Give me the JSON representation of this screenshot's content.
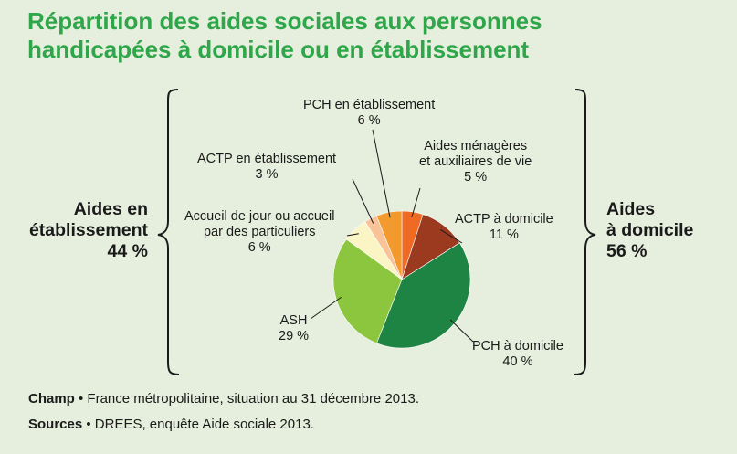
{
  "title_lines": [
    "Répartition des aides sociales aux personnes",
    "handicapées à domicile ou en établissement"
  ],
  "groups": {
    "left": {
      "lines": [
        "Aides en",
        "établissement",
        "44 %"
      ]
    },
    "right": {
      "lines": [
        "Aides",
        "à domicile",
        "56 %"
      ]
    }
  },
  "chart_data": {
    "type": "pie",
    "title": "Répartition des aides sociales aux personnes handicapées à domicile ou en établissement",
    "slices": [
      {
        "label_lines": [
          "Aides ménagères",
          "et auxiliaires de vie"
        ],
        "value": 5,
        "value_text": "5 %",
        "color": "#ef6a22"
      },
      {
        "label_lines": [
          "ACTP à domicile"
        ],
        "value": 11,
        "value_text": "11 %",
        "color": "#9b3a1f"
      },
      {
        "label_lines": [
          "PCH à domicile"
        ],
        "value": 40,
        "value_text": "40 %",
        "color": "#1e8443"
      },
      {
        "label_lines": [
          "ASH"
        ],
        "value": 29,
        "value_text": "29 %",
        "color": "#8cc63f"
      },
      {
        "label_lines": [
          "Accueil de jour ou accueil",
          "par des particuliers"
        ],
        "value": 6,
        "value_text": "6 %",
        "color": "#fbf4c4"
      },
      {
        "label_lines": [
          "ACTP en établissement"
        ],
        "value": 3,
        "value_text": "3 %",
        "color": "#f9c39a"
      },
      {
        "label_lines": [
          "PCH en établissement"
        ],
        "value": 6,
        "value_text": "6 %",
        "color": "#f29a2e"
      }
    ],
    "groups": [
      {
        "name": "Aides à domicile",
        "value": 56,
        "value_text": "56 %"
      },
      {
        "name": "Aides en établissement",
        "value": 44,
        "value_text": "44 %"
      }
    ]
  },
  "footer": {
    "champ_label": "Champ",
    "champ_text": " • France métropolitaine, situation au 31 décembre 2013.",
    "sources_label": "Sources",
    "sources_text": " • DREES, enquête Aide sociale 2013."
  }
}
